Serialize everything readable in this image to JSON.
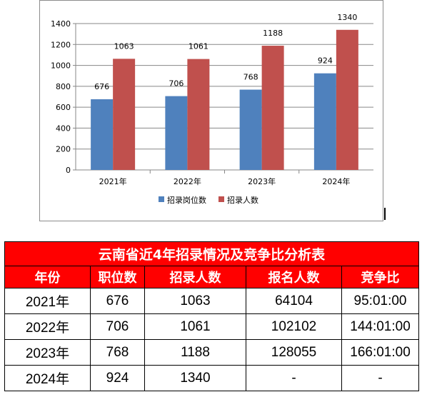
{
  "chart_data": {
    "type": "bar",
    "categories": [
      "2021年",
      "2022年",
      "2023年",
      "2024年"
    ],
    "series": [
      {
        "name": "招录岗位数",
        "values": [
          676,
          706,
          768,
          924
        ],
        "color": "#4f81bd"
      },
      {
        "name": "招录人数",
        "values": [
          1063,
          1061,
          1188,
          1340
        ],
        "color": "#c0504d"
      }
    ],
    "ylim": [
      0,
      1400
    ],
    "yticks": [
      0,
      200,
      400,
      600,
      800,
      1000,
      1200,
      1400
    ],
    "grid": true,
    "legend": "bottom"
  },
  "table": {
    "title": "云南省近4年招录情况及竞争比分析表",
    "headers": [
      "年份",
      "职位数",
      "招录人数",
      "报名人数",
      "竞争比"
    ],
    "rows": [
      [
        "2021年",
        "676",
        "1063",
        "64104",
        "95:01:00"
      ],
      [
        "2022年",
        "706",
        "1061",
        "102102",
        "144:01:00"
      ],
      [
        "2023年",
        "768",
        "1188",
        "128055",
        "166:01:00"
      ],
      [
        "2024年",
        "924",
        "1340",
        "-",
        "-"
      ]
    ]
  }
}
